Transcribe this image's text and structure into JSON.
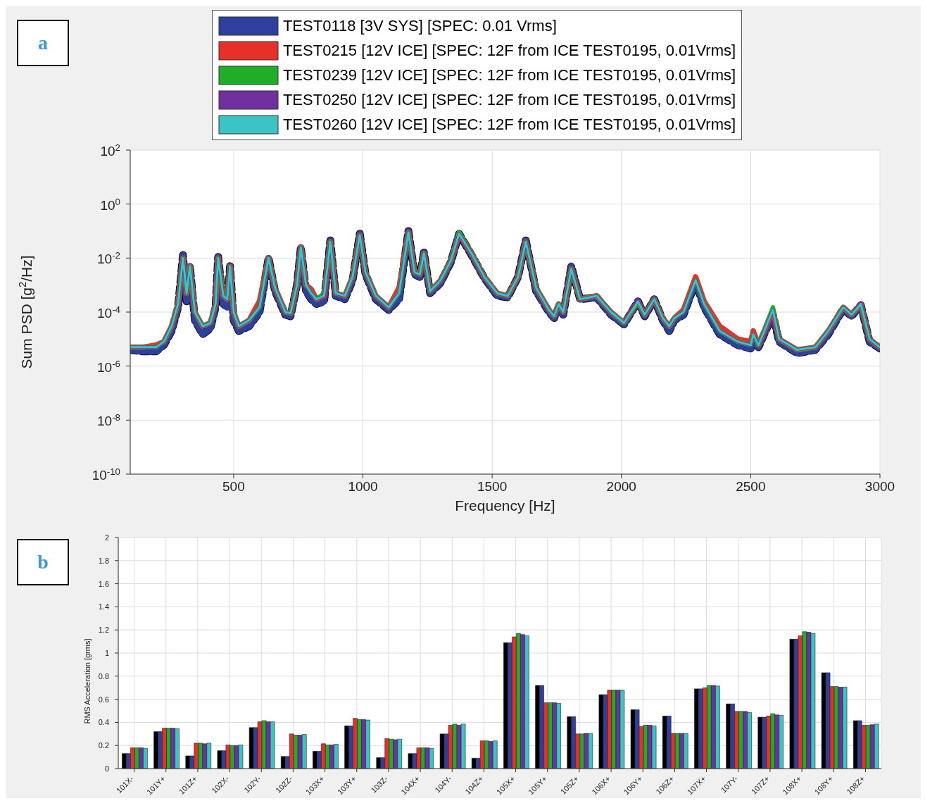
{
  "chart_data": [
    {
      "type": "line",
      "xlabel": "Frequency [Hz]",
      "ylabel": "Sum PSD [g$^{2}$/Hz]",
      "annotations": [
        "a"
      ],
      "log": "y",
      "grid": true,
      "legend": "top",
      "xlim": [
        100,
        3000
      ],
      "xticks": [
        500,
        1000,
        1500,
        2000,
        2500,
        3000
      ],
      "ylim": [
        1e-10,
        100
      ],
      "yticks": [
        {
          "value": 1e-10,
          "label": "10$^{-10}$"
        },
        {
          "value": 1e-08,
          "label": "10$^{-8}$"
        },
        {
          "value": 1e-06,
          "label": "10$^{-6}$"
        },
        {
          "value": 0.0001,
          "label": "10$^{-4}$"
        },
        {
          "value": 0.01,
          "label": "10$^{-2}$"
        },
        {
          "value": 1,
          "label": "10$^{0}$"
        },
        {
          "value": 100,
          "label": "10$^{2}$"
        }
      ],
      "x": [
        100,
        150,
        200,
        230,
        260,
        285,
        304,
        318,
        331,
        350,
        380,
        410,
        430,
        440,
        460,
        475,
        486,
        500,
        520,
        560,
        600,
        635,
        660,
        700,
        720,
        745,
        760,
        780,
        800,
        820,
        850,
        874,
        895,
        930,
        960,
        988,
        1010,
        1050,
        1100,
        1140,
        1176,
        1200,
        1220,
        1236,
        1260,
        1300,
        1340,
        1372,
        1420,
        1470,
        1520,
        1560,
        1600,
        1630,
        1670,
        1720,
        1740,
        1757,
        1775,
        1806,
        1840,
        1904,
        1960,
        2010,
        2064,
        2090,
        2127,
        2160,
        2185,
        2205,
        2240,
        2287,
        2320,
        2380,
        2450,
        2500,
        2510,
        2530,
        2586,
        2610,
        2680,
        2750,
        2800,
        2858,
        2890,
        2926,
        2960,
        3000
      ],
      "series": [
        {
          "color": "#000000",
          "line_style": "dashed",
          "values": [
            4e-06,
            3.5e-06,
            3.5e-06,
            6e-06,
            2e-05,
            0.00015,
            0.013,
            0.00025,
            0.005,
            5e-05,
            1.5e-05,
            2.5e-05,
            0.00015,
            0.011,
            0.0002,
            0.00015,
            0.005,
            5e-05,
            2e-05,
            3e-05,
            0.0001,
            0.01,
            0.0006,
            8e-05,
            7e-05,
            0.001,
            0.025,
            0.0006,
            0.0003,
            0.0002,
            0.00025,
            0.045,
            0.0004,
            0.0003,
            0.0015,
            0.08,
            0.0025,
            0.0003,
            0.00012,
            0.0003,
            0.1,
            0.0025,
            0.002,
            0.016,
            0.0005,
            0.0012,
            0.007,
            0.08,
            0.013,
            0.0018,
            0.0004,
            0.00035,
            0.002,
            0.045,
            0.0006,
            0.0001,
            6e-05,
            0.00015,
            8e-05,
            0.005,
            0.0003,
            0.00035,
            8e-05,
            3.5e-05,
            0.00025,
            7e-05,
            0.0003,
            5e-05,
            2e-05,
            5e-05,
            8e-05,
            0.0013,
            0.00015,
            1.5e-05,
            6e-06,
            4.5e-06,
            1e-05,
            5e-06,
            8e-05,
            8e-06,
            3e-06,
            4e-06,
            1.5e-05,
            0.00013,
            7e-05,
            0.00018,
            8e-06,
            4.5e-06
          ]
        },
        {
          "name": "TEST0118 [3V SYS] [SPEC: 0.01 Vrms]",
          "color": "#2e3f9e",
          "values": [
            4e-06,
            3.5e-06,
            3.5e-06,
            6e-06,
            2e-05,
            0.00015,
            0.013,
            0.00025,
            0.005,
            5e-05,
            1.5e-05,
            2.5e-05,
            0.00015,
            0.011,
            0.0002,
            0.00015,
            0.005,
            5e-05,
            2e-05,
            3e-05,
            0.0001,
            0.01,
            0.0006,
            8e-05,
            7e-05,
            0.001,
            0.025,
            0.0006,
            0.0003,
            0.0002,
            0.00025,
            0.045,
            0.0004,
            0.0003,
            0.0015,
            0.08,
            0.0025,
            0.0003,
            0.00012,
            0.0003,
            0.1,
            0.0025,
            0.002,
            0.016,
            0.0005,
            0.0012,
            0.007,
            0.08,
            0.013,
            0.0018,
            0.0004,
            0.00035,
            0.002,
            0.045,
            0.0006,
            0.0001,
            6e-05,
            0.00015,
            8e-05,
            0.005,
            0.0003,
            0.00035,
            8e-05,
            3.5e-05,
            0.00025,
            7e-05,
            0.0003,
            5e-05,
            2e-05,
            5e-05,
            8e-05,
            0.0013,
            0.00015,
            1.5e-05,
            6e-06,
            4.5e-06,
            1e-05,
            5e-06,
            8e-05,
            8e-06,
            3e-06,
            4e-06,
            1.5e-05,
            0.00013,
            7e-05,
            0.00018,
            8e-06,
            4.5e-06
          ]
        },
        {
          "name": "TEST0215 [12V ICE] [SPEC: 12F from ICE TEST0195, 0.01Vrms]",
          "color": "#e8302a",
          "values": [
            5e-06,
            5e-06,
            6e-06,
            8e-06,
            3e-05,
            0.0002,
            0.01,
            0.0005,
            0.005,
            0.0001,
            3e-05,
            4e-05,
            0.0002,
            0.01,
            0.0004,
            0.0003,
            0.005,
            0.0001,
            3e-05,
            5e-05,
            0.00025,
            0.01,
            0.0008,
            0.0001,
            9e-05,
            0.001,
            0.025,
            0.001,
            0.0007,
            0.0003,
            0.0004,
            0.04,
            0.0005,
            0.0004,
            0.002,
            0.07,
            0.003,
            0.0004,
            0.00015,
            0.0008,
            0.09,
            0.003,
            0.0025,
            0.015,
            0.0006,
            0.0015,
            0.008,
            0.08,
            0.015,
            0.002,
            0.0005,
            0.0004,
            0.002,
            0.04,
            0.0008,
            0.00012,
            7e-05,
            0.0002,
            0.0001,
            0.004,
            0.0003,
            0.0004,
            0.0001,
            4e-05,
            0.00025,
            8e-05,
            0.0003,
            6e-05,
            3e-05,
            6e-05,
            0.00012,
            0.002,
            0.00025,
            3e-05,
            1e-05,
            8e-06,
            2e-05,
            6e-06,
            0.00012,
            1e-05,
            4e-06,
            5e-06,
            2e-05,
            0.00015,
            8e-05,
            0.0002,
            1e-05,
            5e-06
          ]
        },
        {
          "name": "TEST0239 [12V ICE] [SPEC: 12F from ICE TEST0195, 0.01Vrms]",
          "color": "#1fae2a",
          "values": [
            5e-06,
            5e-06,
            5e-06,
            8e-06,
            3e-05,
            0.0002,
            0.01,
            0.0005,
            0.005,
            0.0001,
            3e-05,
            4e-05,
            0.0002,
            0.01,
            0.0004,
            0.0003,
            0.005,
            0.0001,
            3e-05,
            5e-05,
            0.00015,
            0.01,
            0.0008,
            0.0001,
            9e-05,
            0.001,
            0.025,
            0.001,
            0.0005,
            0.0003,
            0.0005,
            0.04,
            0.0005,
            0.0004,
            0.002,
            0.07,
            0.003,
            0.0004,
            0.00015,
            0.0005,
            0.09,
            0.003,
            0.0025,
            0.015,
            0.0006,
            0.0015,
            0.008,
            0.09,
            0.015,
            0.002,
            0.0005,
            0.0004,
            0.002,
            0.04,
            0.0008,
            0.00012,
            7e-05,
            0.0002,
            0.0001,
            0.004,
            0.0003,
            0.0004,
            0.0001,
            4e-05,
            0.00025,
            8e-05,
            0.0003,
            6e-05,
            3e-05,
            6e-05,
            0.0001,
            0.0015,
            0.0002,
            2e-05,
            8e-06,
            6e-06,
            1.5e-05,
            6e-06,
            0.00015,
            1e-05,
            4e-06,
            5e-06,
            2e-05,
            0.00015,
            8e-05,
            0.0002,
            1e-05,
            5e-06
          ]
        },
        {
          "name": "TEST0250 [12V ICE] [SPEC: 12F from ICE TEST0195, 0.01Vrms]",
          "color": "#7030a0",
          "values": [
            5e-06,
            5e-06,
            5e-06,
            8e-06,
            3e-05,
            0.0002,
            0.01,
            0.0005,
            0.005,
            0.0001,
            3e-05,
            4e-05,
            0.0002,
            0.01,
            0.0004,
            0.0003,
            0.005,
            0.0001,
            3e-05,
            5e-05,
            0.00015,
            0.01,
            0.0008,
            0.0001,
            9e-05,
            0.001,
            0.025,
            0.001,
            0.0005,
            0.0003,
            0.0004,
            0.04,
            0.0005,
            0.0004,
            0.002,
            0.07,
            0.003,
            0.0004,
            0.00015,
            0.0005,
            0.09,
            0.003,
            0.0025,
            0.015,
            0.0006,
            0.0015,
            0.008,
            0.08,
            0.015,
            0.002,
            0.0005,
            0.0004,
            0.002,
            0.04,
            0.0008,
            0.00012,
            7e-05,
            0.0002,
            0.0001,
            0.004,
            0.0003,
            0.0004,
            0.0001,
            4e-05,
            0.0003,
            8e-05,
            0.0003,
            6e-05,
            3e-05,
            6e-05,
            0.0001,
            0.0015,
            0.0002,
            2e-05,
            8e-06,
            6e-06,
            1.5e-05,
            6e-06,
            0.00012,
            1e-05,
            4e-06,
            5e-06,
            2e-05,
            0.00015,
            8e-05,
            0.00022,
            1e-05,
            5e-06
          ]
        },
        {
          "name": "TEST0260 [12V ICE] [SPEC: 12F from ICE TEST0195, 0.01Vrms]",
          "color": "#3cc4c4",
          "values": [
            5e-06,
            5e-06,
            5e-06,
            8e-06,
            3e-05,
            0.0002,
            0.01,
            0.0005,
            0.005,
            0.0001,
            3e-05,
            4e-05,
            0.0002,
            0.01,
            0.0004,
            0.0003,
            0.005,
            0.0001,
            3e-05,
            5e-05,
            0.00015,
            0.01,
            0.0008,
            0.0001,
            9e-05,
            0.001,
            0.025,
            0.001,
            0.0005,
            0.0003,
            0.0004,
            0.04,
            0.0005,
            0.0004,
            0.002,
            0.07,
            0.003,
            0.0004,
            0.00015,
            0.0005,
            0.09,
            0.003,
            0.0025,
            0.015,
            0.0006,
            0.0015,
            0.008,
            0.08,
            0.015,
            0.002,
            0.0005,
            0.0004,
            0.002,
            0.04,
            0.0008,
            0.00012,
            7e-05,
            0.0002,
            0.0001,
            0.004,
            0.0003,
            0.0004,
            0.0001,
            4e-05,
            0.00025,
            8e-05,
            0.0003,
            6e-05,
            3e-05,
            6e-05,
            0.0001,
            0.0015,
            0.0002,
            2e-05,
            8e-06,
            6e-06,
            1.5e-05,
            6e-06,
            0.00012,
            1e-05,
            4e-06,
            5e-06,
            2e-05,
            0.00015,
            8e-05,
            0.0002,
            1e-05,
            5e-06
          ]
        }
      ]
    },
    {
      "type": "bar",
      "ylabel": "RMS Acceleration [grms]",
      "annotations": [
        "b"
      ],
      "grid": true,
      "categories": [
        "101X-",
        "101Y+",
        "101Z+",
        "102X-",
        "102Y-",
        "102Z-",
        "103X+",
        "103Y+",
        "103Z-",
        "104X+",
        "104Y-",
        "104Z+",
        "105X+",
        "105Y+",
        "105Z+",
        "106X+",
        "106Y+",
        "106Z+",
        "107X+",
        "107Y-",
        "107Z+",
        "108X+",
        "108Y+",
        "108Z+"
      ],
      "ylim": [
        0,
        2
      ],
      "yticks": [
        0,
        0.2,
        0.4,
        0.6,
        0.8,
        1,
        1.2,
        1.4,
        1.6,
        1.8,
        2
      ],
      "series": [
        {
          "color": "#000000",
          "values": [
            0.13,
            0.32,
            0.11,
            0.155,
            0.355,
            0.105,
            0.15,
            0.37,
            0.095,
            0.13,
            0.3,
            0.09,
            1.09,
            0.72,
            0.45,
            0.64,
            0.51,
            0.455,
            0.69,
            0.56,
            0.445,
            1.12,
            0.83,
            0.415
          ]
        },
        {
          "color": "#2e3f9e",
          "values": [
            0.13,
            0.32,
            0.11,
            0.155,
            0.355,
            0.105,
            0.15,
            0.37,
            0.095,
            0.13,
            0.3,
            0.09,
            1.09,
            0.72,
            0.45,
            0.64,
            0.51,
            0.455,
            0.69,
            0.56,
            0.445,
            1.12,
            0.83,
            0.415
          ]
        },
        {
          "color": "#e8302a",
          "values": [
            0.18,
            0.35,
            0.22,
            0.205,
            0.405,
            0.3,
            0.215,
            0.435,
            0.26,
            0.18,
            0.375,
            0.24,
            1.14,
            0.57,
            0.3,
            0.68,
            0.365,
            0.305,
            0.7,
            0.495,
            0.455,
            1.15,
            0.71,
            0.375
          ]
        },
        {
          "color": "#1fae2a",
          "values": [
            0.18,
            0.35,
            0.22,
            0.2,
            0.415,
            0.29,
            0.205,
            0.425,
            0.255,
            0.18,
            0.385,
            0.24,
            1.17,
            0.57,
            0.3,
            0.68,
            0.375,
            0.305,
            0.72,
            0.495,
            0.475,
            1.185,
            0.71,
            0.375
          ]
        },
        {
          "color": "#7030a0",
          "values": [
            0.18,
            0.35,
            0.215,
            0.2,
            0.405,
            0.29,
            0.205,
            0.425,
            0.25,
            0.18,
            0.375,
            0.235,
            1.16,
            0.57,
            0.305,
            0.68,
            0.375,
            0.305,
            0.72,
            0.495,
            0.465,
            1.18,
            0.705,
            0.38
          ]
        },
        {
          "color": "#3cc4c4",
          "values": [
            0.175,
            0.345,
            0.22,
            0.205,
            0.405,
            0.295,
            0.21,
            0.42,
            0.255,
            0.175,
            0.385,
            0.24,
            1.15,
            0.565,
            0.305,
            0.68,
            0.37,
            0.305,
            0.715,
            0.485,
            0.46,
            1.17,
            0.705,
            0.385
          ]
        }
      ]
    }
  ]
}
